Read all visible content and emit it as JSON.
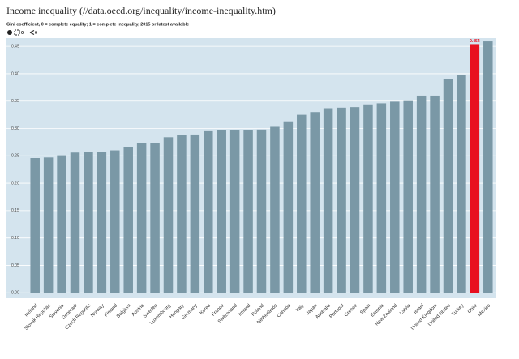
{
  "chart_data": {
    "type": "bar",
    "title": "Income inequality (//data.oecd.org/inequality/income-inequality.htm)",
    "subtitle": "Gini coefficient, 0 = complete equality; 1 = complete inequality, 2015 or latest available",
    "toolbar": {
      "embed_count": 0,
      "share_count": 0
    },
    "categories": [
      "Iceland",
      "Slovak Republic",
      "Slovenia",
      "Denmark",
      "Czech Republic",
      "Norway",
      "Finland",
      "Belgium",
      "Austria",
      "Sweden",
      "Luxembourg",
      "Hungary",
      "Germany",
      "Korea",
      "France",
      "Switzerland",
      "Ireland",
      "Poland",
      "Netherlands",
      "Canada",
      "Italy",
      "Japan",
      "Australia",
      "Portugal",
      "Greece",
      "Spain",
      "Estonia",
      "New Zealand",
      "Latvia",
      "Israel",
      "United Kingdom",
      "United States",
      "Turkey",
      "Chile",
      "Mexico"
    ],
    "values": [
      0.246,
      0.247,
      0.251,
      0.256,
      0.257,
      0.257,
      0.26,
      0.266,
      0.274,
      0.274,
      0.284,
      0.288,
      0.289,
      0.295,
      0.297,
      0.297,
      0.297,
      0.298,
      0.303,
      0.313,
      0.325,
      0.33,
      0.337,
      0.338,
      0.339,
      0.344,
      0.346,
      0.349,
      0.35,
      0.36,
      0.36,
      0.39,
      0.398,
      0.454,
      0.459
    ],
    "color": "#7a98a6",
    "highlight": {
      "index": 33,
      "color": "#e8101f",
      "value_label": "0.454"
    },
    "ylim": [
      -0.01,
      0.465
    ],
    "yticks": [
      {
        "value": 0,
        "label": "0.00"
      },
      0.05,
      {
        "value": 0.1,
        "label": "0.10"
      },
      0.15,
      {
        "value": 0.2,
        "label": "0.20"
      },
      0.25,
      {
        "value": 0.3,
        "label": "0.30"
      },
      0.35,
      {
        "value": 0.4,
        "label": "0.40"
      },
      0.45
    ],
    "grid": true
  }
}
